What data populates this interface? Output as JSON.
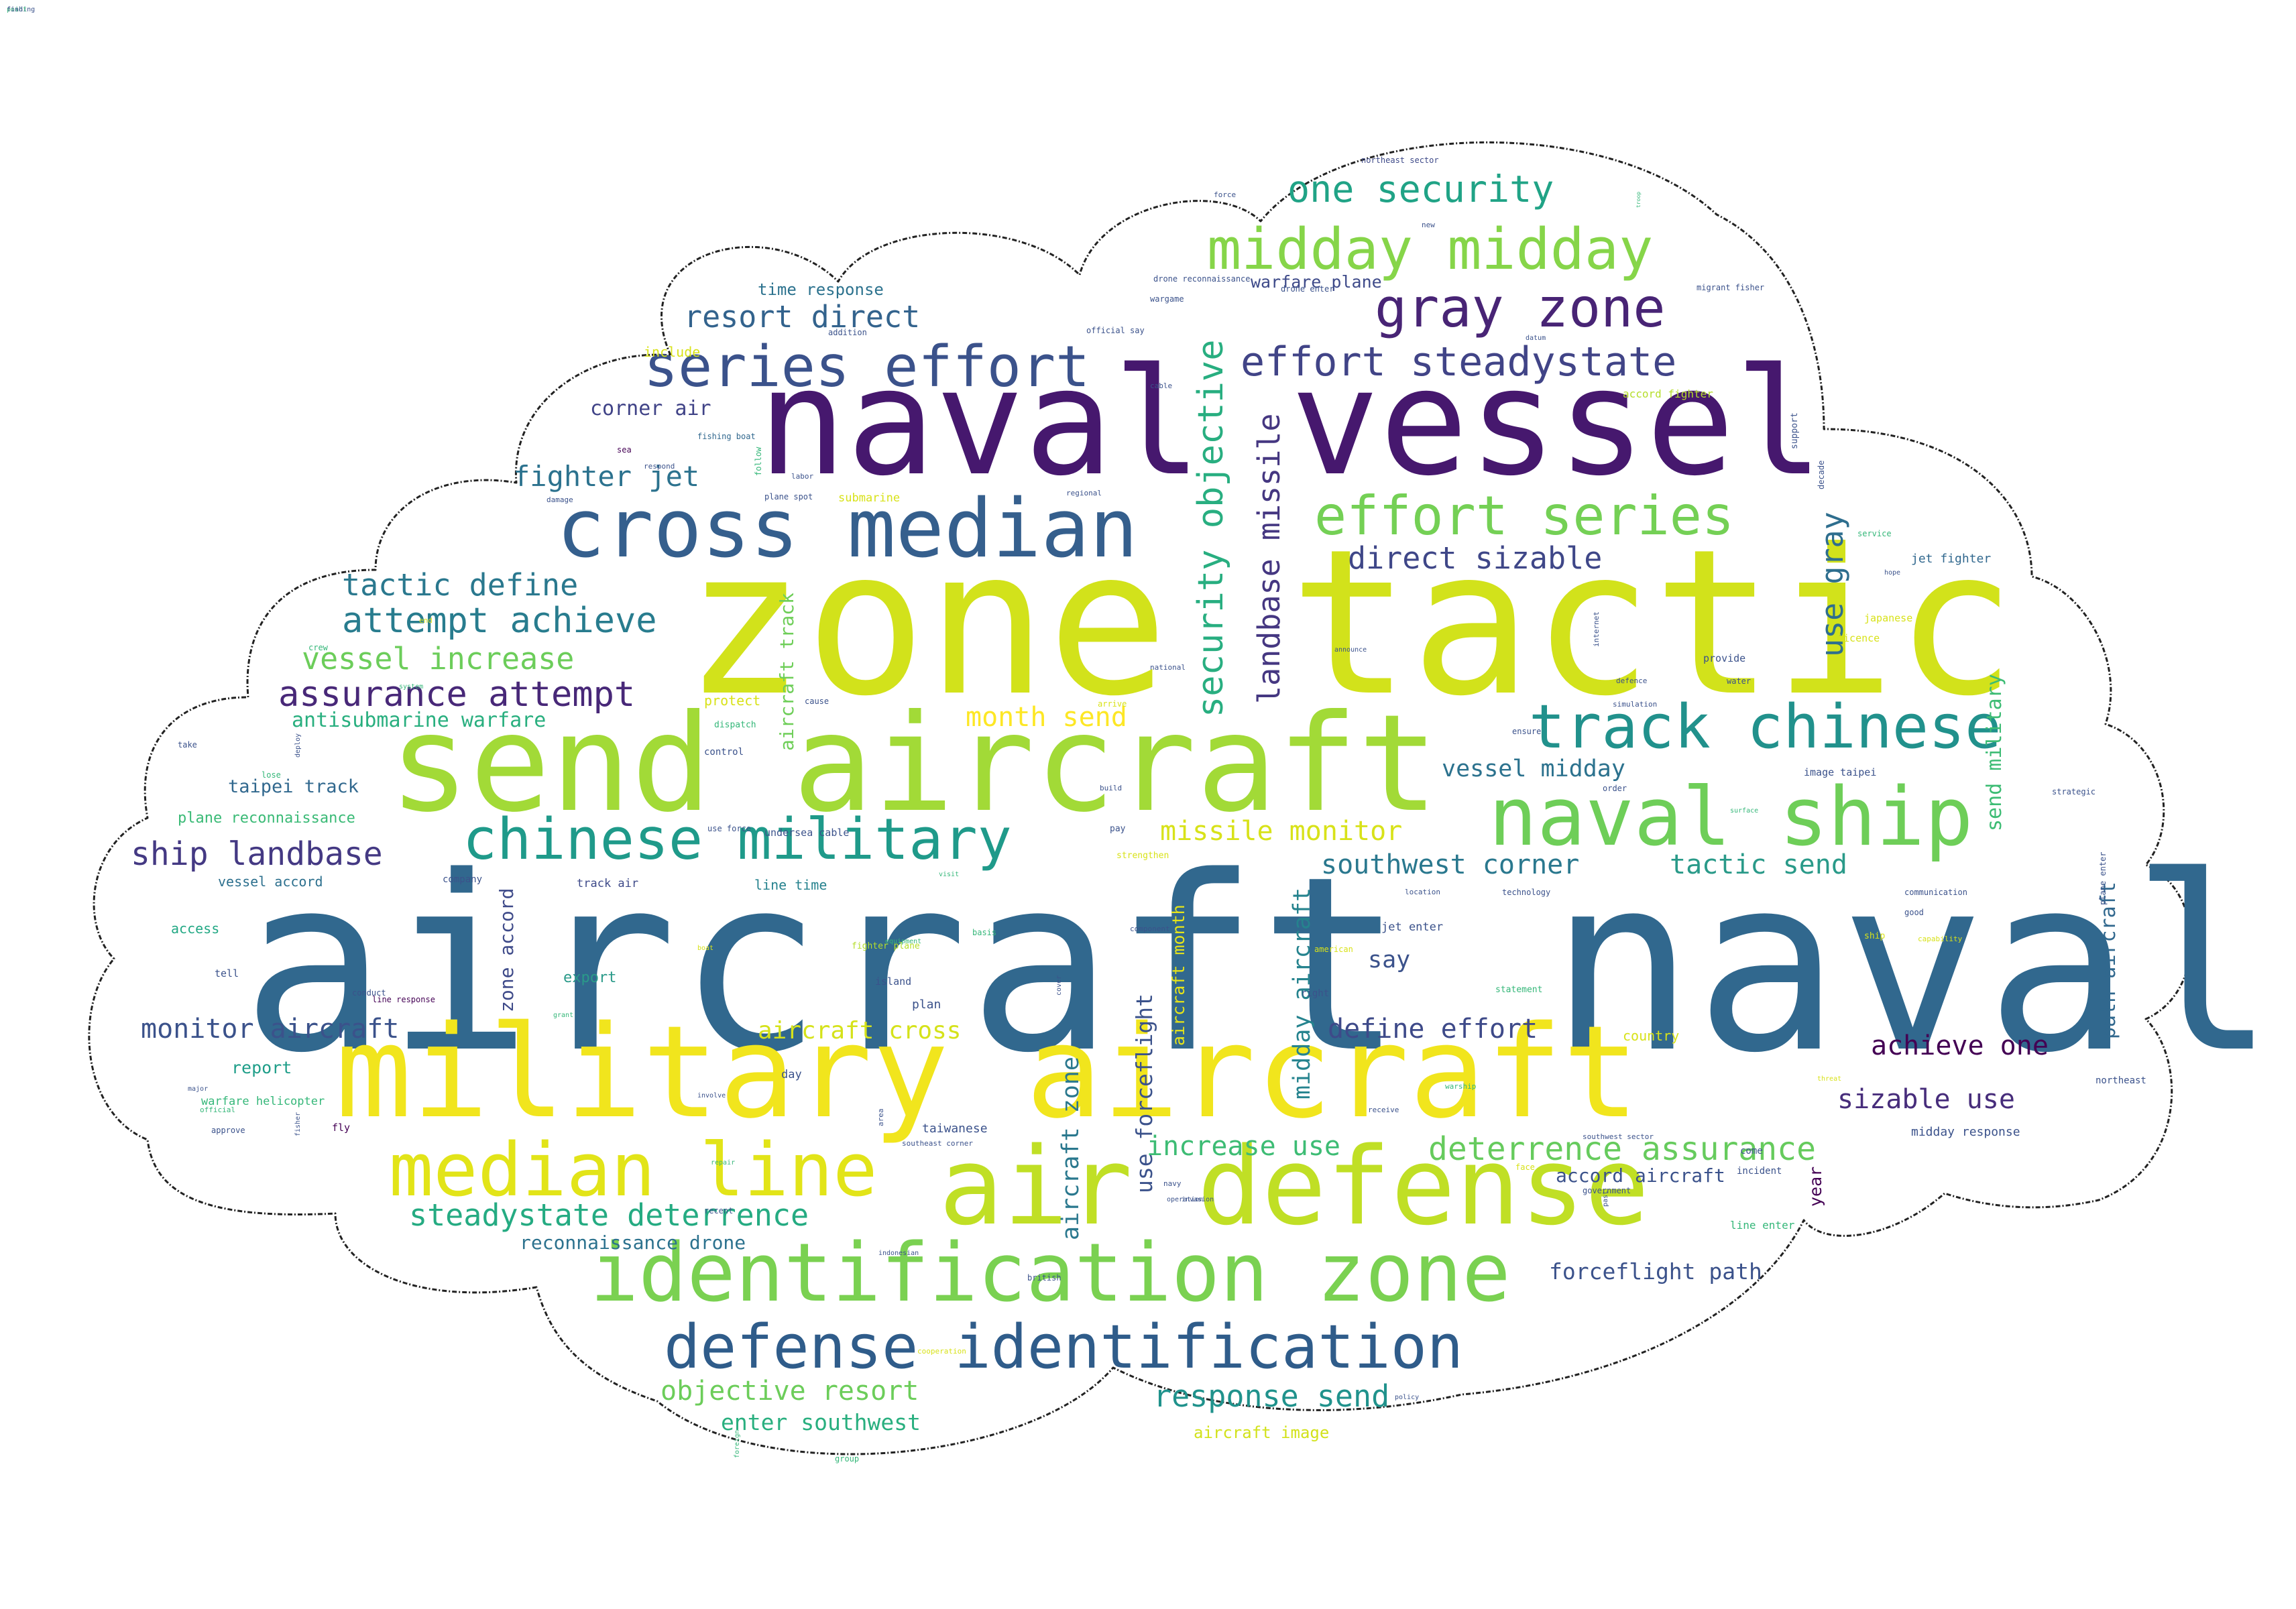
{
  "palette": {
    "background": "#ffffff",
    "outline": "#222222",
    "viridis": [
      "#440154",
      "#482878",
      "#3e4a89",
      "#31688e",
      "#26828e",
      "#1f9e89",
      "#35b779",
      "#6ece58",
      "#b5de2b",
      "#fde725"
    ]
  },
  "words": [
    {
      "text": "aircraft naval",
      "color": "#31688e"
    },
    {
      "text": "zone tactic",
      "color": "#d2e21b"
    },
    {
      "text": "naval vessel",
      "color": "#46186e"
    },
    {
      "text": "send aircraft",
      "color": "#a2da37"
    },
    {
      "text": "military aircraft",
      "color": "#f1e51d"
    },
    {
      "text": "air defense",
      "color": "#c0df25"
    },
    {
      "text": "identification zone",
      "color": "#7ad151"
    },
    {
      "text": "cross median",
      "color": "#355f8d"
    },
    {
      "text": "defense identification",
      "color": "#2f5c8a"
    },
    {
      "text": "median line",
      "color": "#e2e418"
    },
    {
      "text": "naval ship",
      "color": "#6ece58"
    },
    {
      "text": "track chinese",
      "color": "#21918c"
    },
    {
      "text": "chinese military",
      "color": "#1f9a8a"
    },
    {
      "text": "midday midday",
      "color": "#86d549"
    },
    {
      "text": "series effort",
      "color": "#3b528b"
    },
    {
      "text": "gray zone",
      "color": "#482475"
    },
    {
      "text": "effort series",
      "color": "#74d055"
    },
    {
      "text": "effort steadystate",
      "color": "#414487"
    },
    {
      "text": "one security",
      "color": "#20a386"
    },
    {
      "text": "security objective",
      "color": "#28ae80"
    },
    {
      "text": "landbase missile",
      "color": "#453781"
    },
    {
      "text": "direct sizable",
      "color": "#3f4788"
    },
    {
      "text": "resort direct",
      "color": "#33638d"
    },
    {
      "text": "fighter jet",
      "color": "#2c728e"
    },
    {
      "text": "corner air",
      "color": "#404387"
    },
    {
      "text": "tactic define",
      "color": "#2a788e"
    },
    {
      "text": "attempt achieve",
      "color": "#287c8e"
    },
    {
      "text": "vessel increase",
      "color": "#6ccd5a"
    },
    {
      "text": "assurance attempt",
      "color": "#482878"
    },
    {
      "text": "antisubmarine warfare",
      "color": "#29af7f"
    },
    {
      "text": "taipei track",
      "color": "#31688e"
    },
    {
      "text": "plane reconnaissance",
      "color": "#3aba76"
    },
    {
      "text": "ship landbase",
      "color": "#443983"
    },
    {
      "text": "vessel accord",
      "color": "#2d708e"
    },
    {
      "text": "access",
      "color": "#22a884"
    },
    {
      "text": "month send",
      "color": "#fde725"
    },
    {
      "text": "missile monitor",
      "color": "#d8e219"
    },
    {
      "text": "southwest corner",
      "color": "#2a788e"
    },
    {
      "text": "tactic send",
      "color": "#2a9a89"
    },
    {
      "text": "vessel midday",
      "color": "#2c728e"
    },
    {
      "text": "send military",
      "color": "#3dbc74"
    },
    {
      "text": "use gray",
      "color": "#2e6e8e"
    },
    {
      "text": "path aircraft",
      "color": "#31688e"
    },
    {
      "text": "zone accord",
      "color": "#3e4a89"
    },
    {
      "text": "aircraft track",
      "color": "#6ece58"
    },
    {
      "text": "aircraft zone",
      "color": "#2a788e"
    },
    {
      "text": "use forceflight",
      "color": "#3b528b"
    },
    {
      "text": "aircraft month",
      "color": "#e5e419"
    },
    {
      "text": "midday aircraft",
      "color": "#25838e"
    },
    {
      "text": "export",
      "color": "#2a9a89"
    },
    {
      "text": "say",
      "color": "#3b528b"
    },
    {
      "text": "monitor aircraft",
      "color": "#3b528b"
    },
    {
      "text": "define effort",
      "color": "#3e4a89"
    },
    {
      "text": "achieve one",
      "color": "#440154"
    },
    {
      "text": "aircraft cross",
      "color": "#d5e21a"
    },
    {
      "text": "report",
      "color": "#1f9e89"
    },
    {
      "text": "sizable use",
      "color": "#472d7b"
    },
    {
      "text": "increase use",
      "color": "#3dbc74"
    },
    {
      "text": "deterrence assurance",
      "color": "#66cb5d"
    },
    {
      "text": "steadystate deterrence",
      "color": "#25ab82"
    },
    {
      "text": "accord aircraft",
      "color": "#3b528b"
    },
    {
      "text": "reconnaissance drone",
      "color": "#2c728e"
    },
    {
      "text": "forceflight path",
      "color": "#3b528b"
    },
    {
      "text": "objective resort",
      "color": "#6ccd5a"
    },
    {
      "text": "response send",
      "color": "#20928c"
    },
    {
      "text": "enter southwest",
      "color": "#29af7f"
    },
    {
      "text": "aircraft image",
      "color": "#d2e21b"
    },
    {
      "text": "time response",
      "color": "#2c728e"
    },
    {
      "text": "include",
      "color": "#d8e219"
    },
    {
      "text": "jet fighter",
      "color": "#31688e"
    },
    {
      "text": "taiwanese",
      "color": "#3b528b"
    },
    {
      "text": "warfare plane",
      "color": "#3e4a89"
    },
    {
      "text": "midday response",
      "color": "#3b528b"
    },
    {
      "text": "year",
      "color": "#440154"
    },
    {
      "text": "country",
      "color": "#d8e219"
    },
    {
      "text": "day",
      "color": "#3b528b"
    },
    {
      "text": "line time",
      "color": "#26828e"
    },
    {
      "text": "track air",
      "color": "#3e4a89"
    },
    {
      "text": "plan",
      "color": "#3b528b"
    },
    {
      "text": "island",
      "color": "#3b528b"
    },
    {
      "text": "fly",
      "color": "#440154"
    },
    {
      "text": "warfare helicopter",
      "color": "#35b779"
    },
    {
      "text": "submarine",
      "color": "#d8e219"
    },
    {
      "text": "fishing boat",
      "color": "#31688e"
    },
    {
      "text": "plane spot",
      "color": "#3b528b"
    },
    {
      "text": "northeast sector",
      "color": "#3e4a89"
    },
    {
      "text": "migrant fisher",
      "color": "#3b528b"
    },
    {
      "text": "accord fighter",
      "color": "#b5de2b"
    },
    {
      "text": "drone reconnaissance",
      "color": "#3b528b"
    },
    {
      "text": "official say",
      "color": "#3b528b"
    },
    {
      "text": "undersea cable",
      "color": "#3b528b"
    },
    {
      "text": "line response",
      "color": "#440154"
    },
    {
      "text": "southeast corner",
      "color": "#3b528b"
    },
    {
      "text": "southwest sector",
      "color": "#3b528b"
    },
    {
      "text": "jet enter",
      "color": "#3b528b"
    },
    {
      "text": "image taipei",
      "color": "#3b528b"
    },
    {
      "text": "fighter plane",
      "color": "#b5de2b"
    },
    {
      "text": "plane enter",
      "color": "#3b528b"
    },
    {
      "text": "line enter",
      "color": "#35b779"
    },
    {
      "text": "sea",
      "color": "#440154"
    },
    {
      "text": "respond",
      "color": "#3b528b"
    },
    {
      "text": "damage",
      "color": "#3b528b"
    },
    {
      "text": "follow",
      "color": "#35b779"
    },
    {
      "text": "labor",
      "color": "#3b528b"
    },
    {
      "text": "regional",
      "color": "#3b528b"
    },
    {
      "text": "decade",
      "color": "#3b528b"
    },
    {
      "text": "support",
      "color": "#3b528b"
    },
    {
      "text": "service",
      "color": "#35b779"
    },
    {
      "text": "hope",
      "color": "#3b528b"
    },
    {
      "text": "japanese",
      "color": "#d8e219"
    },
    {
      "text": "licence",
      "color": "#d8e219"
    },
    {
      "text": "provide",
      "color": "#3b528b"
    },
    {
      "text": "defence",
      "color": "#3b528b"
    },
    {
      "text": "water",
      "color": "#3b528b"
    },
    {
      "text": "simulation",
      "color": "#3b528b"
    },
    {
      "text": "national",
      "color": "#3b528b"
    },
    {
      "text": "internet",
      "color": "#3b528b"
    },
    {
      "text": "announce",
      "color": "#3b528b"
    },
    {
      "text": "arrive",
      "color": "#d8e219"
    },
    {
      "text": "cause",
      "color": "#3b528b"
    },
    {
      "text": "protect",
      "color": "#d8e219"
    },
    {
      "text": "dispatch",
      "color": "#35b779"
    },
    {
      "text": "control",
      "color": "#3b528b"
    },
    {
      "text": "build",
      "color": "#3b528b"
    },
    {
      "text": "order",
      "color": "#3b528b"
    },
    {
      "text": "ensure",
      "color": "#3b528b"
    },
    {
      "text": "pay",
      "color": "#3b528b"
    },
    {
      "text": "strengthen",
      "color": "#d8e219"
    },
    {
      "text": "location",
      "color": "#3b528b"
    },
    {
      "text": "technology",
      "color": "#3b528b"
    },
    {
      "text": "communication",
      "color": "#3b528b"
    },
    {
      "text": "good",
      "color": "#3b528b"
    },
    {
      "text": "strategic",
      "color": "#3b528b"
    },
    {
      "text": "surface",
      "color": "#35b779"
    },
    {
      "text": "ship",
      "color": "#d8e219"
    },
    {
      "text": "capability",
      "color": "#d8e219"
    },
    {
      "text": "northeast",
      "color": "#3b528b"
    },
    {
      "text": "threat",
      "color": "#d8e219"
    },
    {
      "text": "come",
      "color": "#3b528b"
    },
    {
      "text": "incident",
      "color": "#3b528b"
    },
    {
      "text": "government",
      "color": "#3b528b"
    },
    {
      "text": "past",
      "color": "#3b528b"
    },
    {
      "text": "face",
      "color": "#d8e219"
    },
    {
      "text": "receive",
      "color": "#3b528b"
    },
    {
      "text": "warship",
      "color": "#35b779"
    },
    {
      "text": "american",
      "color": "#d8e219"
    },
    {
      "text": "right",
      "color": "#3b528b"
    },
    {
      "text": "statement",
      "color": "#35b779"
    },
    {
      "text": "invasion",
      "color": "#3b528b"
    },
    {
      "text": "navy",
      "color": "#3b528b"
    },
    {
      "text": "operation",
      "color": "#3b528b"
    },
    {
      "text": "indonesian",
      "color": "#3b528b"
    },
    {
      "text": "british",
      "color": "#3b528b"
    },
    {
      "text": "cooperation",
      "color": "#d8e219"
    },
    {
      "text": "group",
      "color": "#35b779"
    },
    {
      "text": "foreign",
      "color": "#35b779"
    },
    {
      "text": "policy",
      "color": "#3b528b"
    },
    {
      "text": "recent",
      "color": "#3b528b"
    },
    {
      "text": "involve",
      "color": "#3b528b"
    },
    {
      "text": "area",
      "color": "#3b528b"
    },
    {
      "text": "repair",
      "color": "#35b779"
    },
    {
      "text": "major",
      "color": "#3b528b"
    },
    {
      "text": "approve",
      "color": "#3b528b"
    },
    {
      "text": "official",
      "color": "#35b779"
    },
    {
      "text": "fisher",
      "color": "#3b528b"
    },
    {
      "text": "grant",
      "color": "#35b779"
    },
    {
      "text": "conduct",
      "color": "#3b528b"
    },
    {
      "text": "tell",
      "color": "#3b528b"
    },
    {
      "text": "company",
      "color": "#3b528b"
    },
    {
      "text": "take",
      "color": "#3b528b"
    },
    {
      "text": "lose",
      "color": "#35b779"
    },
    {
      "text": "deploy",
      "color": "#3b528b"
    },
    {
      "text": "use force",
      "color": "#3b528b"
    },
    {
      "text": "visit",
      "color": "#35b779"
    },
    {
      "text": "boat",
      "color": "#d8e219"
    },
    {
      "text": "equipment",
      "color": "#35b779"
    },
    {
      "text": "basis",
      "color": "#35b779"
    },
    {
      "text": "component",
      "color": "#3b528b"
    },
    {
      "text": "cover",
      "color": "#3b528b"
    },
    {
      "text": "crew",
      "color": "#35b779"
    },
    {
      "text": "end",
      "color": "#d8e219"
    },
    {
      "text": "system",
      "color": "#35b779"
    },
    {
      "text": "force",
      "color": "#3b528b"
    },
    {
      "text": "new",
      "color": "#3b528b"
    },
    {
      "text": "drone enter",
      "color": "#3b528b"
    },
    {
      "text": "datum",
      "color": "#3b528b"
    },
    {
      "text": "wargame",
      "color": "#3b528b"
    },
    {
      "text": "cable",
      "color": "#3b528b"
    },
    {
      "text": "troop",
      "color": "#35b779"
    },
    {
      "text": "addition",
      "color": "#3b528b"
    },
    {
      "text": "fishing",
      "color": "#3b528b"
    },
    {
      "text": "point",
      "color": "#35b779"
    },
    {
      "text": "find",
      "color": "#3b528b"
    }
  ]
}
